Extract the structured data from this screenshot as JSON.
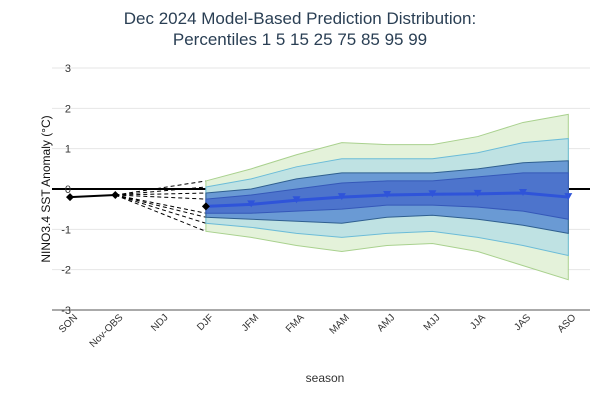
{
  "chart_data": {
    "type": "line",
    "title": "Dec 2024 Model-Based Prediction Distribution:",
    "subtitle": "Percentiles 1 5 15 25 75 85 95 99",
    "x_label": "season",
    "y_label": "NINO3.4 SST Anomaly (°C)",
    "categories": [
      "SON",
      "Nov-OBS",
      "NDJ",
      "DJF",
      "JFM",
      "FMA",
      "MAM",
      "AMJ",
      "MJJ",
      "JJA",
      "JAS",
      "ASO"
    ],
    "ylim": [
      -3,
      3
    ],
    "yticks": [
      3,
      2,
      1,
      0,
      -1,
      -2,
      -3
    ],
    "grid": true,
    "observed": {
      "color": "#000000",
      "values": [
        -0.2,
        -0.15,
        null,
        null,
        null,
        null,
        null,
        null,
        null,
        null,
        null,
        null
      ]
    },
    "median": {
      "color": "#2f54d9",
      "values": [
        null,
        null,
        null,
        -0.43,
        -0.38,
        -0.28,
        -0.2,
        -0.15,
        -0.13,
        -0.12,
        -0.1,
        -0.2
      ]
    },
    "bands": [
      {
        "color": "#e4f2da",
        "edge_color": "#a9d18e",
        "lower": [
          null,
          null,
          null,
          -1.05,
          -1.2,
          -1.4,
          -1.55,
          -1.4,
          -1.35,
          -1.55,
          -1.9,
          -2.25
        ],
        "upper": [
          null,
          null,
          null,
          0.2,
          0.5,
          0.85,
          1.15,
          1.1,
          1.1,
          1.3,
          1.65,
          1.85
        ]
      },
      {
        "color": "#bfe2e3",
        "edge_color": "#6cbcd8",
        "lower": [
          null,
          null,
          null,
          -0.85,
          -0.95,
          -1.1,
          -1.2,
          -1.1,
          -1.05,
          -1.2,
          -1.4,
          -1.65
        ],
        "upper": [
          null,
          null,
          null,
          0.05,
          0.25,
          0.55,
          0.75,
          0.75,
          0.75,
          0.9,
          1.15,
          1.25
        ]
      },
      {
        "color": "#6a9ad4",
        "edge_color": "#2f5f8f",
        "lower": [
          null,
          null,
          null,
          -0.7,
          -0.75,
          -0.8,
          -0.85,
          -0.7,
          -0.65,
          -0.75,
          -0.9,
          -1.1
        ],
        "upper": [
          null,
          null,
          null,
          -0.1,
          0.0,
          0.25,
          0.4,
          0.4,
          0.4,
          0.5,
          0.65,
          0.7
        ]
      },
      {
        "color": "#4d74cc",
        "edge_color": "#3558b8",
        "lower": [
          null,
          null,
          null,
          -0.6,
          -0.6,
          -0.55,
          -0.5,
          -0.4,
          -0.4,
          -0.45,
          -0.55,
          -0.75
        ],
        "upper": [
          null,
          null,
          null,
          -0.25,
          -0.15,
          0.0,
          0.15,
          0.2,
          0.2,
          0.3,
          0.4,
          0.4
        ]
      }
    ]
  }
}
